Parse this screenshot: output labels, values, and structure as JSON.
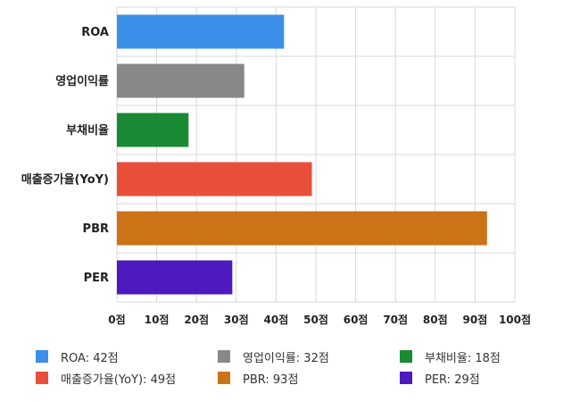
{
  "chart_data": {
    "type": "bar",
    "orientation": "horizontal",
    "categories": [
      "ROA",
      "영업이익률",
      "부채비율",
      "매출증가율(YoY)",
      "PBR",
      "PER"
    ],
    "values": [
      42,
      32,
      18,
      49,
      93,
      29
    ],
    "colors": [
      "#3b8fe8",
      "#888888",
      "#1a8a35",
      "#ea4f3b",
      "#cc7318",
      "#4e19be"
    ],
    "xlim": [
      0,
      100
    ],
    "x_ticks": [
      "0점",
      "10점",
      "20점",
      "30점",
      "40점",
      "50점",
      "60점",
      "70점",
      "80점",
      "90점",
      "100점"
    ],
    "grid": true,
    "legend_placement": "bottom",
    "legend": [
      "ROA: 42점",
      "영업이익률: 32점",
      "부채비율: 18점",
      "매출증가율(YoY): 49점",
      "PBR: 93점",
      "PER: 29점"
    ]
  }
}
